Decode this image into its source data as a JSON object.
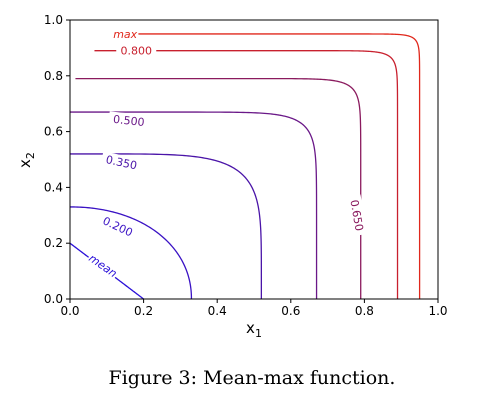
{
  "caption": "Figure 3: Mean-max function.",
  "chart_data": {
    "type": "contour",
    "title": "",
    "xlabel": "x",
    "xlabel_sub": "1",
    "ylabel": "x",
    "ylabel_sub": "2",
    "xlim": [
      0.0,
      1.0
    ],
    "ylim": [
      0.0,
      1.0
    ],
    "xticks": [
      "0.0",
      "0.2",
      "0.4",
      "0.6",
      "0.8",
      "1.0"
    ],
    "yticks": [
      "0.0",
      "0.2",
      "0.4",
      "0.6",
      "0.8",
      "1.0"
    ],
    "grid": false,
    "levels": [
      {
        "label": "mean",
        "color": "#2a10d8",
        "x_intercept": 0.2,
        "y_intercept": 0.2,
        "label_pos": [
          0.09,
          0.12
        ]
      },
      {
        "label": "0.200",
        "color": "#3a12c4",
        "x_intercept": 0.33,
        "y_intercept": 0.33,
        "label_pos": [
          0.13,
          0.26
        ]
      },
      {
        "label": "0.350",
        "color": "#4a14a8",
        "x_intercept": 0.52,
        "y_intercept": 0.52,
        "label_pos": [
          0.14,
          0.49
        ]
      },
      {
        "label": "0.500",
        "color": "#6a1888",
        "x_intercept": 0.67,
        "y_intercept": 0.67,
        "label_pos": [
          0.16,
          0.64
        ]
      },
      {
        "label": "0.650",
        "color": "#8a1a5e",
        "x_intercept": 0.79,
        "y_intercept": 0.79,
        "label_pos": [
          0.78,
          0.3
        ]
      },
      {
        "label": "0.800",
        "color": "#c8202e",
        "x_intercept": 0.89,
        "y_intercept": 0.89,
        "label_pos": [
          0.18,
          0.89
        ]
      },
      {
        "label": "max",
        "color": "#e0281c",
        "x_intercept": 0.95,
        "y_intercept": 0.95,
        "label_pos": [
          0.15,
          0.95
        ]
      }
    ]
  }
}
